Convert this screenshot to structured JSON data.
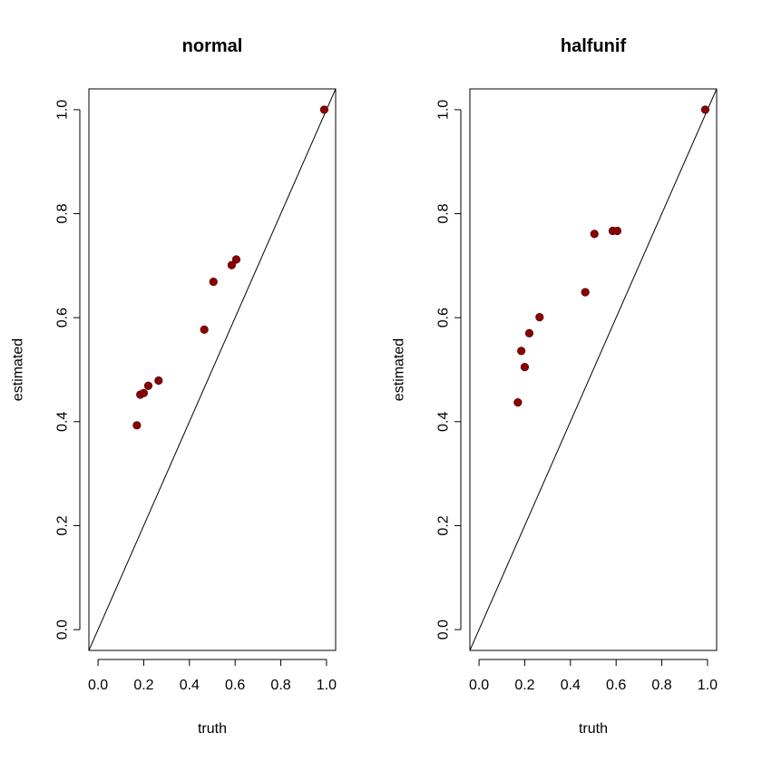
{
  "chart_data": [
    {
      "type": "scatter",
      "title": "normal",
      "xlabel": "truth",
      "ylabel": "estimated",
      "xlim": [
        -0.04,
        1.04
      ],
      "ylim": [
        -0.04,
        1.04
      ],
      "xticks": [
        "0.0",
        "0.2",
        "0.4",
        "0.6",
        "0.8",
        "1.0"
      ],
      "yticks": [
        "0.0",
        "0.2",
        "0.4",
        "0.6",
        "0.8",
        "1.0"
      ],
      "reference_line": "y = x",
      "point_color": "#8B0000",
      "points": [
        {
          "x": 0.17,
          "y": 0.393
        },
        {
          "x": 0.185,
          "y": 0.452
        },
        {
          "x": 0.2,
          "y": 0.455
        },
        {
          "x": 0.22,
          "y": 0.469
        },
        {
          "x": 0.265,
          "y": 0.479
        },
        {
          "x": 0.465,
          "y": 0.577
        },
        {
          "x": 0.505,
          "y": 0.669
        },
        {
          "x": 0.585,
          "y": 0.701
        },
        {
          "x": 0.605,
          "y": 0.712
        },
        {
          "x": 0.99,
          "y": 1.0
        }
      ]
    },
    {
      "type": "scatter",
      "title": "halfunif",
      "xlabel": "truth",
      "ylabel": "estimated",
      "xlim": [
        -0.04,
        1.04
      ],
      "ylim": [
        -0.04,
        1.04
      ],
      "xticks": [
        "0.0",
        "0.2",
        "0.4",
        "0.6",
        "0.8",
        "1.0"
      ],
      "yticks": [
        "0.0",
        "0.2",
        "0.4",
        "0.6",
        "0.8",
        "1.0"
      ],
      "reference_line": "y = x",
      "point_color": "#8B0000",
      "points": [
        {
          "x": 0.17,
          "y": 0.437
        },
        {
          "x": 0.185,
          "y": 0.536
        },
        {
          "x": 0.2,
          "y": 0.505
        },
        {
          "x": 0.22,
          "y": 0.57
        },
        {
          "x": 0.265,
          "y": 0.601
        },
        {
          "x": 0.465,
          "y": 0.649
        },
        {
          "x": 0.505,
          "y": 0.761
        },
        {
          "x": 0.585,
          "y": 0.767
        },
        {
          "x": 0.605,
          "y": 0.767
        },
        {
          "x": 0.99,
          "y": 1.0
        }
      ]
    }
  ]
}
